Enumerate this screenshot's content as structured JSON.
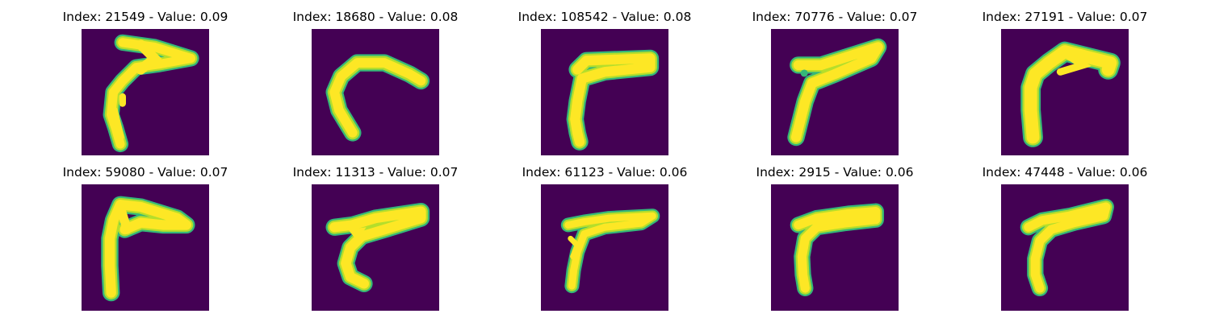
{
  "figure": {
    "background": "#ffffff",
    "image_background": "#440154",
    "stroke_colors": [
      "#fde725",
      "#b5de2b",
      "#6ece58",
      "#35b779",
      "#1f9e89",
      "#26828e",
      "#31688e"
    ],
    "panels": [
      {
        "index": "21549",
        "value": "0.09",
        "title": "Index: 21549 - Value: 0.09",
        "glyph": "stroke-shape-1"
      },
      {
        "index": "18680",
        "value": "0.08",
        "title": "Index: 18680 - Value: 0.08",
        "glyph": "stroke-shape-2"
      },
      {
        "index": "108542",
        "value": "0.08",
        "title": "Index: 108542 - Value: 0.08",
        "glyph": "stroke-shape-3"
      },
      {
        "index": "70776",
        "value": "0.07",
        "title": "Index: 70776 - Value: 0.07",
        "glyph": "stroke-shape-4"
      },
      {
        "index": "27191",
        "value": "0.07",
        "title": "Index: 27191 - Value: 0.07",
        "glyph": "stroke-shape-5"
      },
      {
        "index": "59080",
        "value": "0.07",
        "title": "Index: 59080 - Value: 0.07",
        "glyph": "stroke-shape-6"
      },
      {
        "index": "11313",
        "value": "0.07",
        "title": "Index: 11313 - Value: 0.07",
        "glyph": "stroke-shape-7"
      },
      {
        "index": "61123",
        "value": "0.06",
        "title": "Index: 61123 - Value: 0.06",
        "glyph": "stroke-shape-8"
      },
      {
        "index": "2915",
        "value": "0.06",
        "title": "Index: 2915 - Value: 0.06",
        "glyph": "stroke-shape-9"
      },
      {
        "index": "47448",
        "value": "0.06",
        "title": "Index: 47448 - Value: 0.06",
        "glyph": "stroke-shape-10"
      }
    ]
  }
}
